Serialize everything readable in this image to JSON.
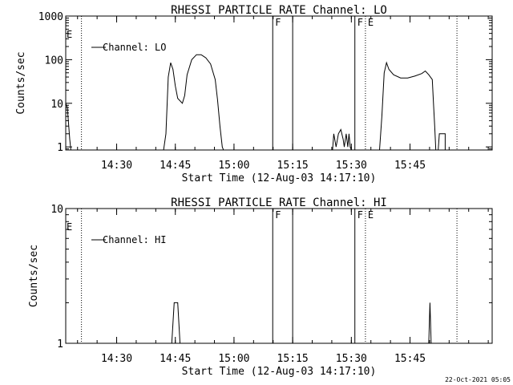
{
  "footer_timestamp": "22-Oct-2021 05:05",
  "chart_data": [
    {
      "type": "line",
      "title": "RHESSI PARTICLE_RATE Channel: LO",
      "xlabel": "Start Time (12-Aug-03 14:17:10)",
      "ylabel": "Counts/sec",
      "y_scale": "log",
      "ylim": [
        0.85,
        1000
      ],
      "y_ticks": [
        {
          "value": 1,
          "label": "1"
        },
        {
          "value": 10,
          "label": "10"
        },
        {
          "value": 100,
          "label": "100"
        },
        {
          "value": 1000,
          "label": "1000"
        }
      ],
      "xlim_minutes": [
        14.283,
        16.1
      ],
      "x_ticks": [
        {
          "value": 14.5,
          "label": "14:30"
        },
        {
          "value": 14.75,
          "label": "14:45"
        },
        {
          "value": 15.0,
          "label": "15:00"
        },
        {
          "value": 15.25,
          "label": "15:15"
        },
        {
          "value": 15.5,
          "label": "15:30"
        },
        {
          "value": 15.75,
          "label": "15:45"
        }
      ],
      "legend": {
        "label": "Channel: LO",
        "placement": "top-left"
      },
      "series": [
        {
          "name": "Channel: LO",
          "points": [
            [
              14.283,
              10
            ],
            [
              14.29,
              8
            ],
            [
              14.3,
              1.5
            ],
            [
              14.305,
              0.85
            ],
            [
              14.7,
              0.85
            ],
            [
              14.71,
              2
            ],
            [
              14.72,
              40
            ],
            [
              14.73,
              85
            ],
            [
              14.74,
              60
            ],
            [
              14.75,
              25
            ],
            [
              14.76,
              13
            ],
            [
              14.78,
              10
            ],
            [
              14.79,
              15
            ],
            [
              14.8,
              45
            ],
            [
              14.82,
              100
            ],
            [
              14.84,
              130
            ],
            [
              14.86,
              130
            ],
            [
              14.88,
              110
            ],
            [
              14.9,
              80
            ],
            [
              14.92,
              35
            ],
            [
              14.93,
              12
            ],
            [
              14.94,
              3
            ],
            [
              14.95,
              1
            ],
            [
              14.955,
              0.85
            ],
            [
              15.42,
              0.85
            ],
            [
              15.425,
              2
            ],
            [
              15.435,
              1
            ],
            [
              15.445,
              2
            ],
            [
              15.455,
              2.5
            ],
            [
              15.465,
              1.5
            ],
            [
              15.47,
              1
            ],
            [
              15.478,
              2
            ],
            [
              15.485,
              1
            ],
            [
              15.49,
              2
            ],
            [
              15.495,
              1
            ],
            [
              15.5,
              0.85
            ],
            [
              15.62,
              0.85
            ],
            [
              15.63,
              5
            ],
            [
              15.64,
              50
            ],
            [
              15.65,
              85
            ],
            [
              15.66,
              60
            ],
            [
              15.68,
              45
            ],
            [
              15.71,
              38
            ],
            [
              15.74,
              38
            ],
            [
              15.77,
              42
            ],
            [
              15.8,
              48
            ],
            [
              15.815,
              55
            ],
            [
              15.83,
              45
            ],
            [
              15.845,
              35
            ],
            [
              15.85,
              10
            ],
            [
              15.855,
              3
            ],
            [
              15.86,
              0.85
            ],
            [
              15.87,
              0.85
            ],
            [
              15.875,
              2
            ],
            [
              15.9,
              2
            ],
            [
              15.9,
              0.85
            ]
          ]
        }
      ],
      "annotations": [
        {
          "x": 14.35,
          "style": "dotted",
          "label": ""
        },
        {
          "x": 15.165,
          "style": "solid",
          "label": "F"
        },
        {
          "x": 15.25,
          "style": "solid",
          "label": ""
        },
        {
          "x": 15.515,
          "style": "solid",
          "label": "F"
        },
        {
          "x": 15.56,
          "style": "dotted",
          "label": "E"
        },
        {
          "x": 15.95,
          "style": "dotted",
          "label": ""
        }
      ],
      "left_edge_label": "E"
    },
    {
      "type": "line",
      "title": "RHESSI PARTICLE_RATE Channel: HI",
      "xlabel": "Start Time (12-Aug-03 14:17:10)",
      "ylabel": "Counts/sec",
      "y_scale": "log",
      "ylim": [
        1,
        10
      ],
      "y_ticks": [
        {
          "value": 1,
          "label": "1"
        },
        {
          "value": 10,
          "label": "10"
        }
      ],
      "xlim_minutes": [
        14.283,
        16.1
      ],
      "x_ticks": [
        {
          "value": 14.5,
          "label": "14:30"
        },
        {
          "value": 14.75,
          "label": "14:45"
        },
        {
          "value": 15.0,
          "label": "15:00"
        },
        {
          "value": 15.25,
          "label": "15:15"
        },
        {
          "value": 15.5,
          "label": "15:30"
        },
        {
          "value": 15.75,
          "label": "15:45"
        }
      ],
      "legend": {
        "label": "Channel: HI",
        "placement": "top-left"
      },
      "series": [
        {
          "name": "Channel: HI",
          "points": [
            [
              14.283,
              1
            ],
            [
              14.735,
              1
            ],
            [
              14.745,
              2
            ],
            [
              14.76,
              2
            ],
            [
              14.77,
              1
            ],
            [
              15.83,
              1
            ],
            [
              15.835,
              2
            ],
            [
              15.84,
              1
            ],
            [
              16.1,
              1
            ]
          ]
        }
      ],
      "annotations": [
        {
          "x": 14.35,
          "style": "dotted",
          "label": ""
        },
        {
          "x": 15.165,
          "style": "solid",
          "label": "F"
        },
        {
          "x": 15.25,
          "style": "solid",
          "label": ""
        },
        {
          "x": 15.515,
          "style": "solid",
          "label": "F"
        },
        {
          "x": 15.56,
          "style": "dotted",
          "label": "E"
        },
        {
          "x": 15.95,
          "style": "dotted",
          "label": ""
        }
      ],
      "left_edge_label": "E"
    }
  ]
}
